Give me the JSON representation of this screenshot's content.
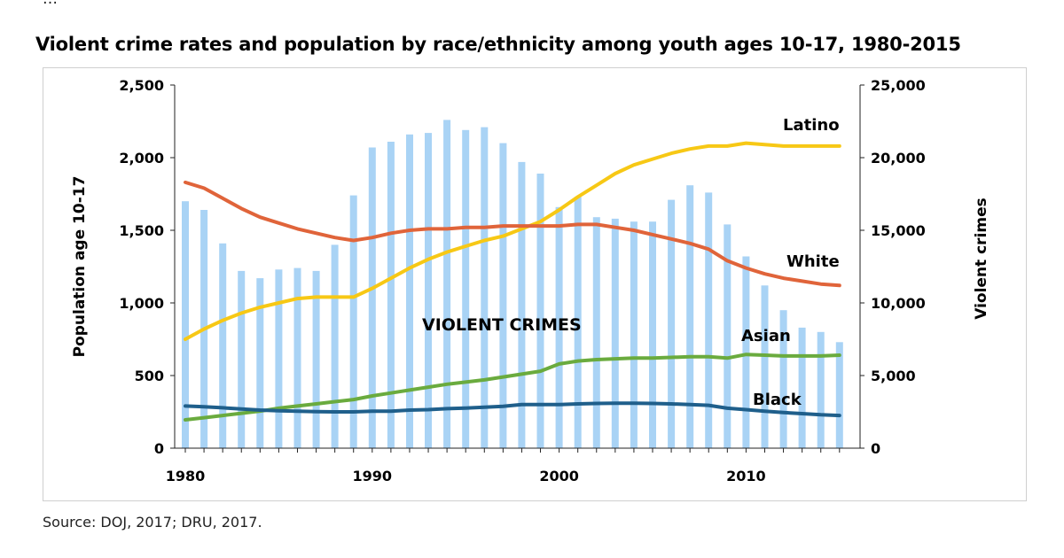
{
  "header_fragment": "…",
  "title": "Violent crime rates and population by race/ethnicity among youth ages 10-17, 1980-2015",
  "source": "Source: DOJ, 2017; DRU, 2017.",
  "colors": {
    "bars": "#a9d3f5",
    "Latino": "#f7c815",
    "White": "#e0643a",
    "Asian": "#6aab3e",
    "Black": "#1f5f8b"
  },
  "chart_data": {
    "type": "bar+line",
    "title": "Violent crime rates and population by race/ethnicity among youth ages 10-17, 1980-2015",
    "ylabel_left": "Population age 10-17",
    "ylabel_right": "Violent crimes",
    "ylim_left": [
      0,
      2500
    ],
    "ylim_right": [
      0,
      25000
    ],
    "x_ticks": [
      "1980",
      "1990",
      "2000",
      "2010"
    ],
    "y_left_ticks": [
      "0",
      "500",
      "1,000",
      "1,500",
      "2,000",
      "2,500"
    ],
    "y_right_ticks": [
      "0",
      "5,000",
      "10,000",
      "15,000",
      "20,000",
      "25,000"
    ],
    "years": [
      1980,
      1981,
      1982,
      1983,
      1984,
      1985,
      1986,
      1987,
      1988,
      1989,
      1990,
      1991,
      1992,
      1993,
      1994,
      1995,
      1996,
      1997,
      1998,
      1999,
      2000,
      2001,
      2002,
      2003,
      2004,
      2005,
      2006,
      2007,
      2008,
      2009,
      2010,
      2011,
      2012,
      2013,
      2014,
      2015
    ],
    "annotation": "VIOLENT CRIMES",
    "bars": {
      "name": "Violent crimes",
      "axis": "right",
      "values": [
        17000,
        16400,
        14100,
        12200,
        11700,
        12300,
        12400,
        12200,
        14000,
        17400,
        20700,
        21100,
        21600,
        21700,
        22600,
        21900,
        22100,
        21000,
        19700,
        18900,
        16600,
        17300,
        15900,
        15800,
        15600,
        15600,
        17100,
        18100,
        17600,
        15400,
        13200,
        11200,
        9500,
        8300,
        8000,
        7300
      ]
    },
    "series": [
      {
        "name": "Latino",
        "axis": "left",
        "values": [
          750,
          820,
          880,
          930,
          970,
          1000,
          1030,
          1040,
          1040,
          1040,
          1100,
          1170,
          1240,
          1300,
          1350,
          1390,
          1430,
          1460,
          1510,
          1560,
          1640,
          1730,
          1810,
          1890,
          1950,
          1990,
          2030,
          2060,
          2080,
          2080,
          2100,
          2090,
          2080,
          2080,
          2080,
          2080
        ]
      },
      {
        "name": "White",
        "axis": "left",
        "values": [
          1830,
          1790,
          1720,
          1650,
          1590,
          1550,
          1510,
          1480,
          1450,
          1430,
          1450,
          1480,
          1500,
          1510,
          1510,
          1520,
          1520,
          1530,
          1530,
          1530,
          1530,
          1540,
          1540,
          1520,
          1500,
          1470,
          1440,
          1410,
          1370,
          1290,
          1240,
          1200,
          1170,
          1150,
          1130,
          1120
        ]
      },
      {
        "name": "Asian",
        "axis": "left",
        "values": [
          195,
          210,
          225,
          240,
          255,
          275,
          290,
          305,
          320,
          335,
          360,
          380,
          400,
          420,
          440,
          455,
          470,
          490,
          510,
          530,
          580,
          600,
          610,
          615,
          620,
          620,
          625,
          630,
          630,
          620,
          645,
          640,
          635,
          635,
          635,
          640
        ]
      },
      {
        "name": "Black",
        "axis": "left",
        "values": [
          290,
          285,
          278,
          270,
          262,
          258,
          255,
          252,
          250,
          250,
          255,
          255,
          262,
          265,
          272,
          276,
          282,
          288,
          300,
          300,
          300,
          305,
          308,
          310,
          310,
          308,
          305,
          300,
          295,
          275,
          265,
          255,
          245,
          238,
          230,
          225
        ]
      }
    ]
  }
}
